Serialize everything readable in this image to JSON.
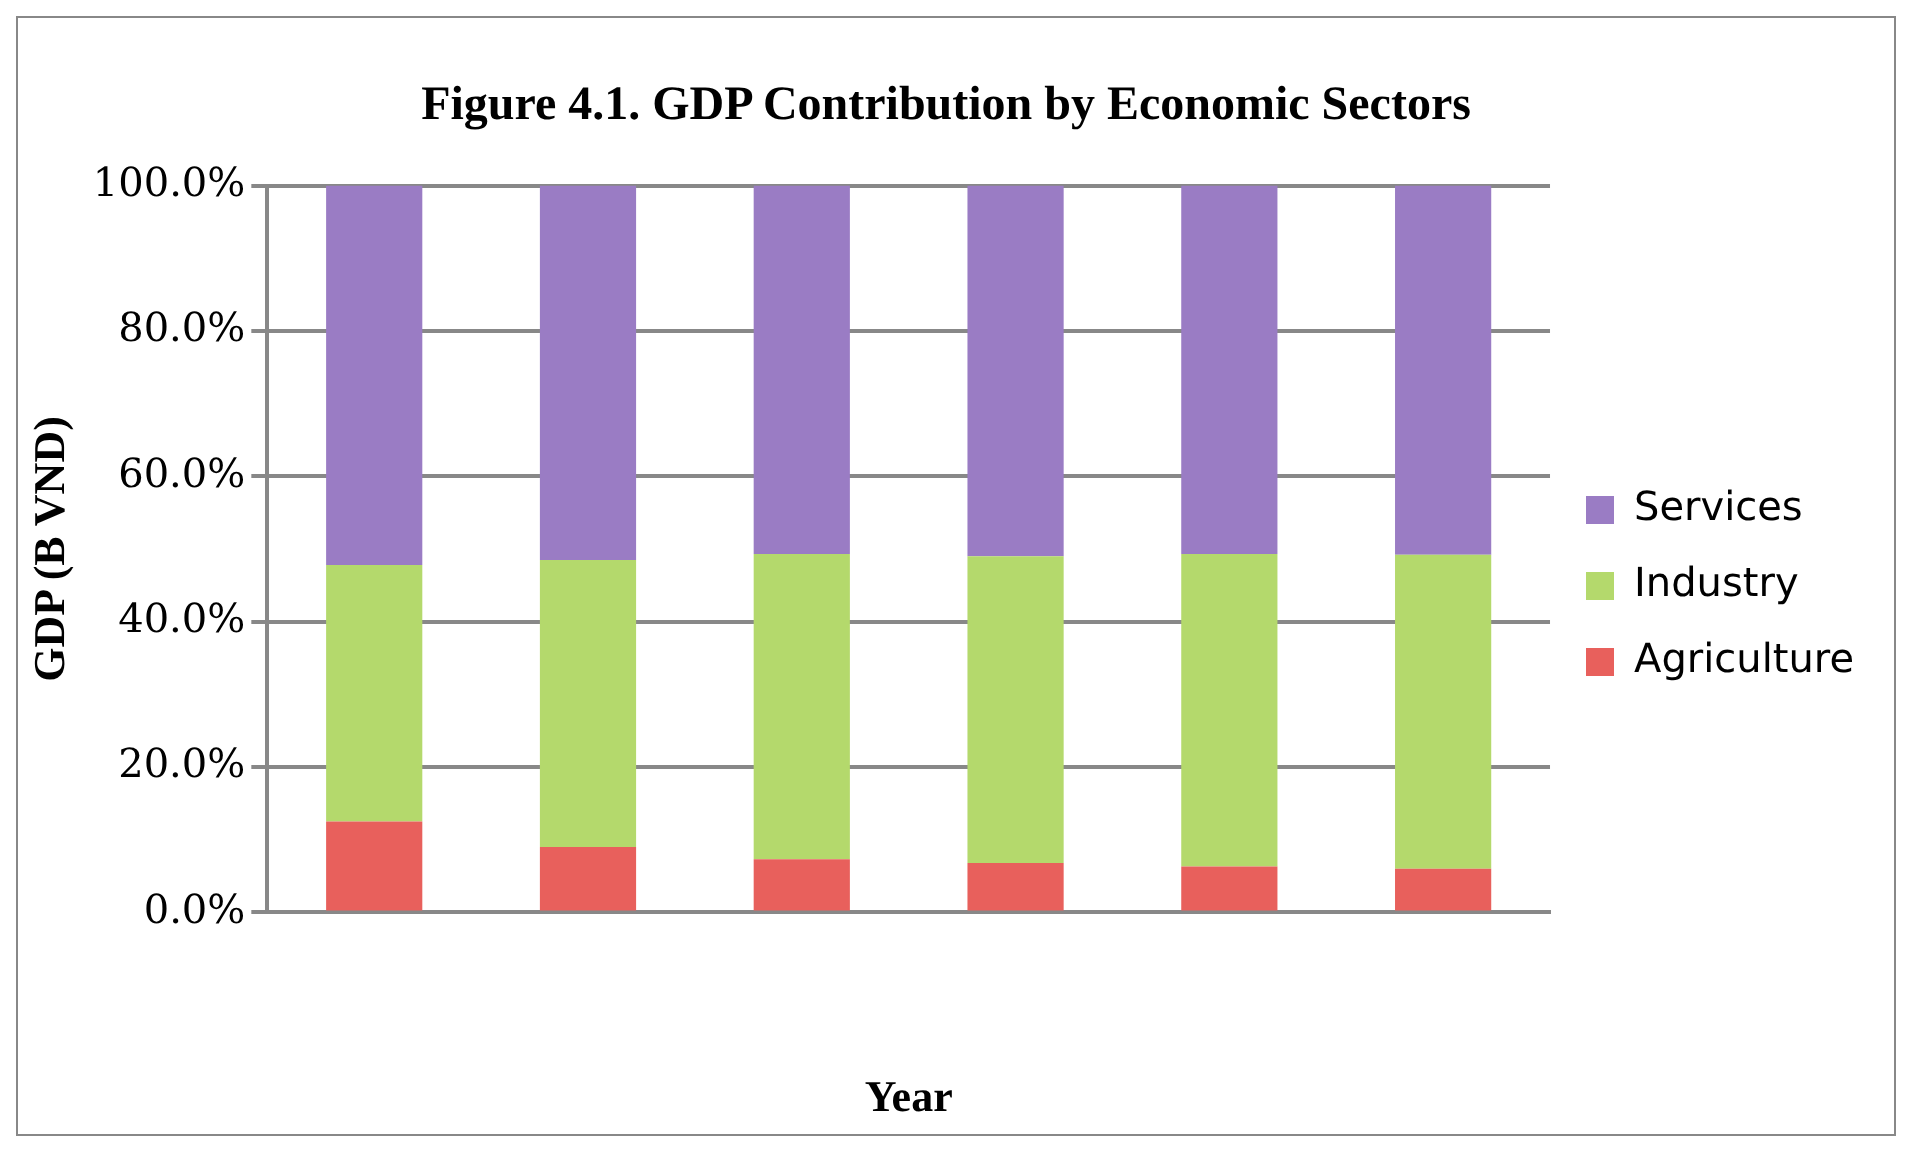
{
  "chart_data": {
    "type": "bar",
    "title": "Figure 4.1. GDP Contribution by Economic Sectors",
    "xlabel": "Year",
    "ylabel": "GDP (B VND)",
    "categories": [
      null,
      null,
      null,
      null,
      null,
      null
    ],
    "series": [
      {
        "name": "Agriculture",
        "color": "#e8605c",
        "values": [
          12.5,
          9.0,
          7.3,
          6.8,
          6.3,
          6.0
        ]
      },
      {
        "name": "Industry",
        "color": "#b4d96c",
        "values": [
          35.3,
          39.5,
          42.0,
          42.2,
          43.0,
          43.2
        ]
      },
      {
        "name": "Services",
        "color": "#9a7cc4",
        "values": [
          52.2,
          51.5,
          50.7,
          51.0,
          50.7,
          50.8
        ]
      }
    ],
    "stacked": true,
    "ylim": [
      0,
      100
    ],
    "yticks": [
      {
        "value": 0,
        "label": "0.0%"
      },
      {
        "value": 20,
        "label": "20.0%"
      },
      {
        "value": 40,
        "label": "40.0%"
      },
      {
        "value": 60,
        "label": "60.0%"
      },
      {
        "value": 80,
        "label": "80.0%"
      },
      {
        "value": 100,
        "label": "100.0%"
      }
    ],
    "grid": "y",
    "legend": "right"
  }
}
